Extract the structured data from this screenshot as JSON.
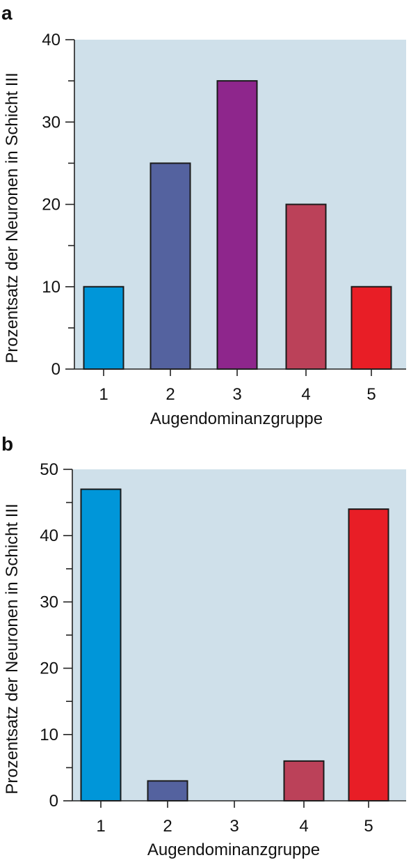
{
  "chart_data": [
    {
      "panel": "a",
      "type": "bar",
      "categories": [
        "1",
        "2",
        "3",
        "4",
        "5"
      ],
      "values": [
        10,
        25,
        35,
        20,
        10
      ],
      "colors": [
        "#0096d9",
        "#54629f",
        "#8e268c",
        "#bb4159",
        "#e81e26"
      ],
      "xlabel": "Augendominanzgruppe",
      "ylabel": "Prozentsatz der Neuronen in Schicht III",
      "ylim": [
        0,
        40
      ],
      "yticks": [
        "0",
        "10",
        "20",
        "30",
        "40"
      ],
      "minor_ticks": true,
      "grid": false,
      "background": "#cfe0ea"
    },
    {
      "panel": "b",
      "type": "bar",
      "categories": [
        "1",
        "2",
        "3",
        "4",
        "5"
      ],
      "values": [
        47,
        3,
        0,
        6,
        44
      ],
      "colors": [
        "#0096d9",
        "#54629f",
        "#8e268c",
        "#bb4159",
        "#e81e26"
      ],
      "xlabel": "Augendominanzgruppe",
      "ylabel": "Prozentsatz der Neuronen in Schicht III",
      "ylim": [
        0,
        50
      ],
      "yticks": [
        "0",
        "10",
        "20",
        "30",
        "40",
        "50"
      ],
      "minor_ticks": true,
      "grid": false,
      "background": "#cfe0ea"
    }
  ]
}
